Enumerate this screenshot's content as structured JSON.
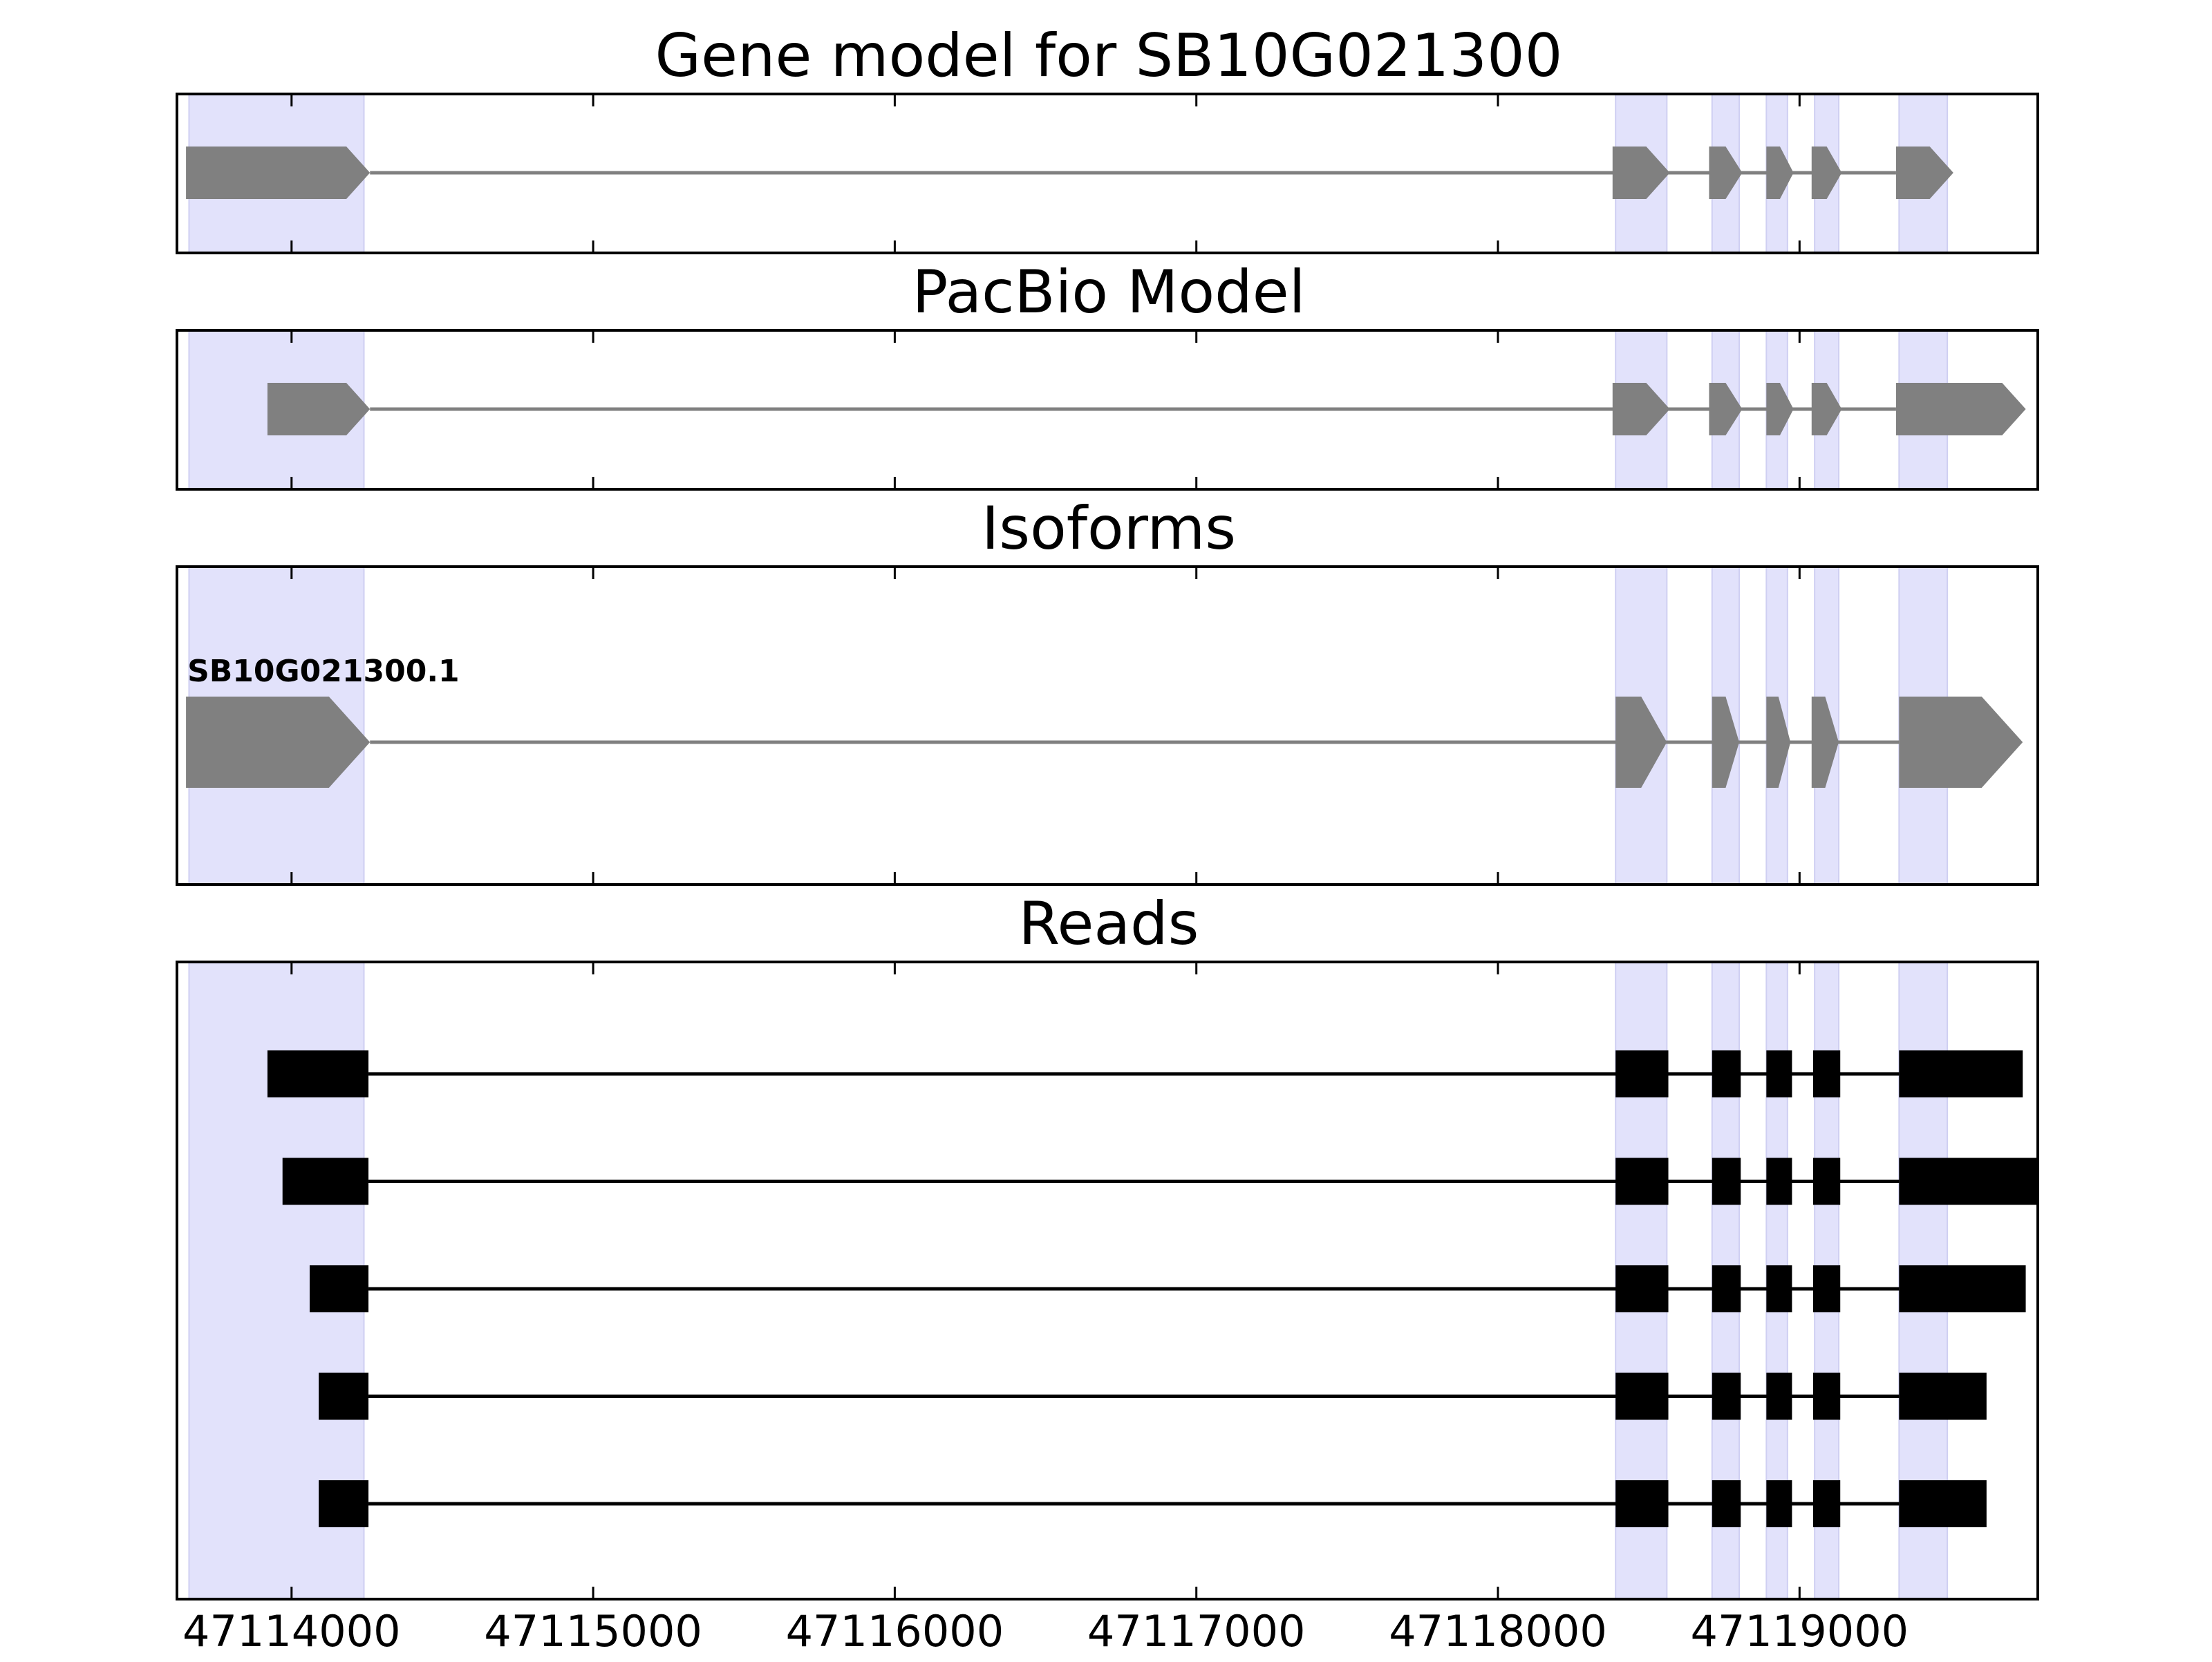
{
  "chart_data": {
    "type": "gene-track",
    "x_axis": {
      "xlim": [
        47113620,
        47119790
      ],
      "ticks": [
        47114000,
        47115000,
        47116000,
        47117000,
        47118000,
        47119000
      ],
      "tick_labels": [
        "47114000",
        "47115000",
        "47116000",
        "47117000",
        "47118000",
        "47119000"
      ]
    },
    "shaded_exon_regions": [
      [
        47113660,
        47114240
      ],
      [
        47118390,
        47118560
      ],
      [
        47118710,
        47118800
      ],
      [
        47118890,
        47118960
      ],
      [
        47119050,
        47119130
      ],
      [
        47119330,
        47119490
      ]
    ],
    "colors": {
      "shade": "#e2e2fb",
      "model": "#808080",
      "reads": "#000000"
    },
    "panels": [
      {
        "title": "Gene model for SB10G021300",
        "kind": "model",
        "strand": "+",
        "features": [
          {
            "label": "",
            "exons": [
              [
                47113650,
                47114260
              ],
              [
                47118380,
                47118570
              ],
              [
                47118700,
                47118810
              ],
              [
                47118890,
                47118980
              ],
              [
                47119040,
                47119140
              ],
              [
                47119320,
                47119510
              ]
            ]
          }
        ]
      },
      {
        "title": "PacBio Model",
        "kind": "model",
        "strand": "+",
        "features": [
          {
            "label": "",
            "exons": [
              [
                47113920,
                47114260
              ],
              [
                47118380,
                47118570
              ],
              [
                47118700,
                47118810
              ],
              [
                47118890,
                47118980
              ],
              [
                47119040,
                47119140
              ],
              [
                47119320,
                47119750
              ]
            ]
          }
        ]
      },
      {
        "title": "Isoforms",
        "kind": "model",
        "strand": "+",
        "features": [
          {
            "label": "SB10G021300.1",
            "exons": [
              [
                47113650,
                47114260
              ],
              [
                47118390,
                47118560
              ],
              [
                47118710,
                47118800
              ],
              [
                47118890,
                47118970
              ],
              [
                47119040,
                47119130
              ],
              [
                47119330,
                47119740
              ]
            ]
          }
        ]
      },
      {
        "title": "Reads",
        "kind": "reads",
        "features": [
          {
            "label": "",
            "exons": [
              [
                47113920,
                47114255
              ],
              [
                47118390,
                47118565
              ],
              [
                47118710,
                47118805
              ],
              [
                47118890,
                47118975
              ],
              [
                47119045,
                47119135
              ],
              [
                47119330,
                47119740
              ]
            ]
          },
          {
            "label": "",
            "exons": [
              [
                47113970,
                47114255
              ],
              [
                47118390,
                47118565
              ],
              [
                47118710,
                47118805
              ],
              [
                47118890,
                47118975
              ],
              [
                47119045,
                47119135
              ],
              [
                47119330,
                47119790
              ]
            ]
          },
          {
            "label": "",
            "exons": [
              [
                47114060,
                47114255
              ],
              [
                47118390,
                47118565
              ],
              [
                47118710,
                47118805
              ],
              [
                47118890,
                47118975
              ],
              [
                47119045,
                47119135
              ],
              [
                47119330,
                47119750
              ]
            ]
          },
          {
            "label": "",
            "exons": [
              [
                47114090,
                47114255
              ],
              [
                47118390,
                47118565
              ],
              [
                47118710,
                47118805
              ],
              [
                47118890,
                47118975
              ],
              [
                47119045,
                47119135
              ],
              [
                47119330,
                47119620
              ]
            ]
          },
          {
            "label": "",
            "exons": [
              [
                47114090,
                47114255
              ],
              [
                47118390,
                47118565
              ],
              [
                47118710,
                47118805
              ],
              [
                47118890,
                47118975
              ],
              [
                47119045,
                47119135
              ],
              [
                47119330,
                47119620
              ]
            ]
          }
        ]
      }
    ]
  }
}
